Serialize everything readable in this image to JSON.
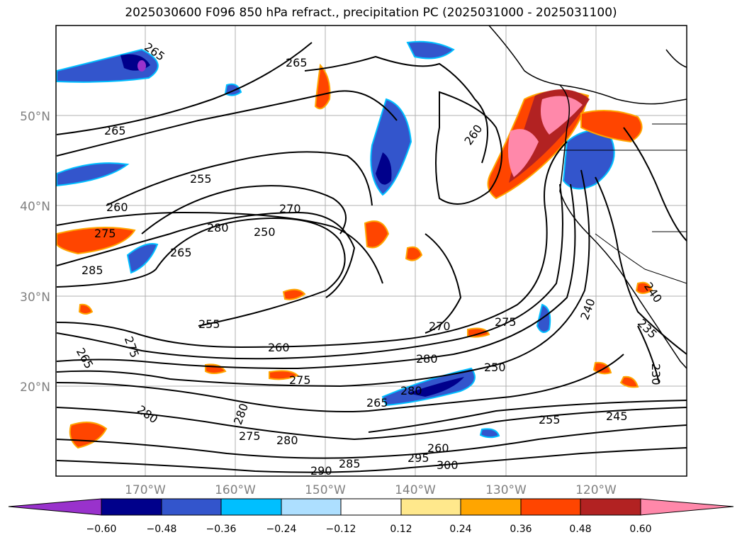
{
  "title": "2025030600 F096 850 hPa refract., precipitation PC (2025031000 - 2025031100)",
  "map": {
    "lat_labels": [
      "50°N",
      "40°N",
      "30°N",
      "20°N"
    ],
    "lon_labels": [
      "170°W",
      "160°W",
      "150°W",
      "140°W",
      "130°W",
      "120°W"
    ],
    "label_color": "#808080",
    "contour_labels": [
      "265",
      "265",
      "265",
      "260",
      "255",
      "260",
      "270",
      "280",
      "250",
      "275",
      "265",
      "285",
      "255",
      "260",
      "275",
      "270",
      "280",
      "250",
      "275",
      "265",
      "280",
      "275",
      "280",
      "285",
      "290",
      "295",
      "300",
      "260",
      "255",
      "245",
      "240",
      "240",
      "235",
      "230",
      "275",
      "280",
      "265",
      "280"
    ]
  },
  "colorbar": {
    "tick_labels": [
      "−0.60",
      "−0.48",
      "−0.36",
      "−0.24",
      "−0.12",
      "0.12",
      "0.24",
      "0.36",
      "0.48",
      "0.60"
    ],
    "colors": [
      "#9932CC",
      "#00008B",
      "#3355CC",
      "#00BFFF",
      "#ADDFFF",
      "#FFFFFF",
      "#FFE88C",
      "#FFA500",
      "#FF4500",
      "#B22222",
      "#FF88AA",
      "#FF88AA"
    ]
  }
}
